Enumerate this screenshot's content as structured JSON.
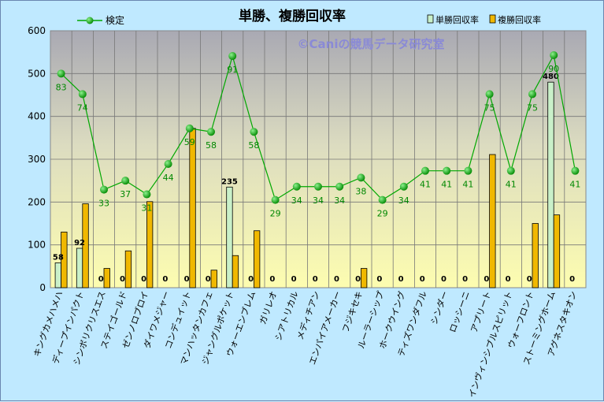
{
  "chart_data": {
    "type": "bar",
    "title": "単勝、複勝回収率",
    "watermark": "©Caniの競馬データ研究室",
    "ylim": [
      0,
      600
    ],
    "yticks": [
      0,
      100,
      200,
      300,
      400,
      500,
      600
    ],
    "grid": true,
    "legend_position": "top",
    "categories": [
      "キングカメハメハ",
      "ディープインパクト",
      "シンボリクリスエス",
      "ステイゴールド",
      "ゼンノロブロイ",
      "ダイワメジャー",
      "コンデュイット",
      "マンハッタンカフェ",
      "ジャングルポケット",
      "ウォーエンブレム",
      "ガリレオ",
      "シアトリカル",
      "メディチアン",
      "エンパイアメーカー",
      "フジキセキ",
      "ルーラーシップ",
      "ホークウイング",
      "ティズワンダフル",
      "シンダー",
      "ロッシーニ",
      "アプリート",
      "インヴィンシブルスピリット",
      "ウォーフロント",
      "ストーミングホーム",
      "アグネスタキオン"
    ],
    "series": [
      {
        "name": "単勝回収率",
        "kind": "bar",
        "color": "#c9f0c9",
        "values": [
          58,
          92,
          0,
          0,
          0,
          0,
          0,
          0,
          235,
          0,
          0,
          0,
          0,
          0,
          0,
          0,
          0,
          0,
          0,
          0,
          0,
          0,
          0,
          480,
          0
        ]
      },
      {
        "name": "複勝回収率",
        "kind": "bar",
        "color": "#f0b800",
        "values": [
          130,
          196,
          45,
          86,
          201,
          0,
          372,
          41,
          75,
          133,
          0,
          0,
          0,
          0,
          45,
          0,
          0,
          0,
          0,
          0,
          311,
          0,
          150,
          170,
          0
        ]
      },
      {
        "name": "検定",
        "kind": "line",
        "color": "#00a800",
        "values": [
          500,
          452,
          229,
          250,
          218,
          289,
          372,
          364,
          541,
          364,
          205,
          236,
          236,
          236,
          257,
          205,
          236,
          273,
          273,
          273,
          452,
          273,
          452,
          543,
          273
        ],
        "labels": [
          83,
          74,
          33,
          37,
          31,
          44,
          59,
          58,
          91,
          58,
          29,
          34,
          34,
          34,
          38,
          29,
          34,
          41,
          41,
          41,
          75,
          41,
          75,
          90,
          41
        ]
      }
    ]
  }
}
